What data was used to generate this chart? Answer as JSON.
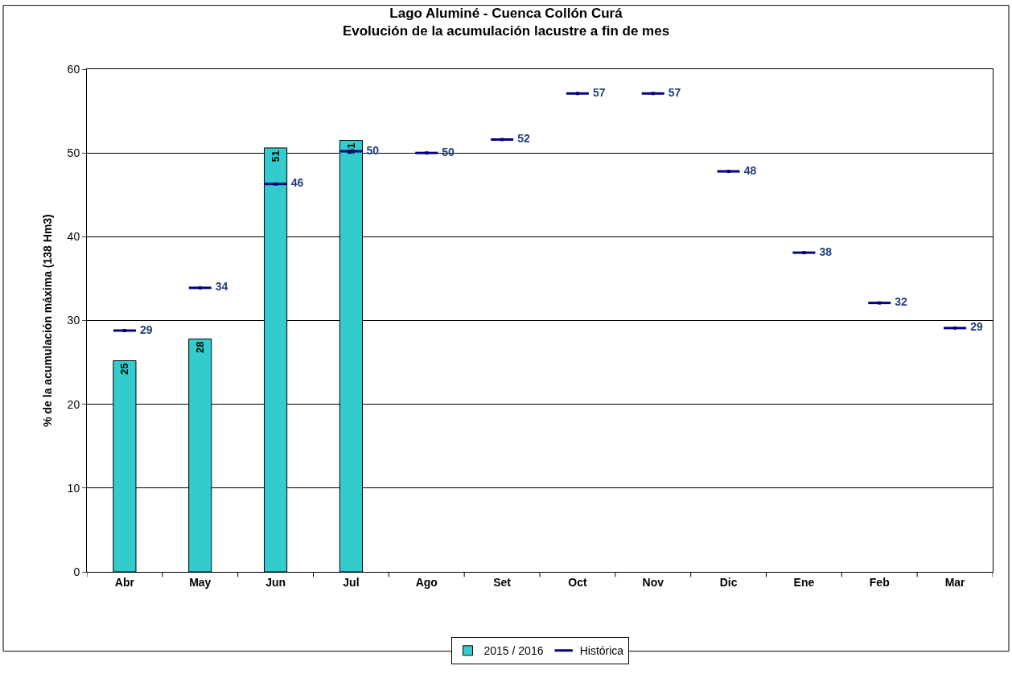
{
  "chart_data": {
    "type": "bar",
    "title": "Lago Aluminé - Cuenca Collón Curá",
    "subtitle": "Evolución de la acumulación lacustre a fin de mes",
    "ylabel": "% de la acumulación máxima (138 Hm3)",
    "categories": [
      "Abr",
      "May",
      "Jun",
      "Jul",
      "Ago",
      "Set",
      "Oct",
      "Nov",
      "Dic",
      "Ene",
      "Feb",
      "Mar"
    ],
    "series": [
      {
        "name": "2015 / 2016",
        "type": "bar",
        "color": "#33cccc",
        "values": [
          25.2,
          27.8,
          50.6,
          51.5,
          null,
          null,
          null,
          null,
          null,
          null,
          null,
          null
        ],
        "value_labels": [
          "25",
          "28",
          "51",
          "51",
          null,
          null,
          null,
          null,
          null,
          null,
          null,
          null
        ]
      },
      {
        "name": "Histórica",
        "type": "scatter",
        "color": "#000080",
        "values": [
          28.8,
          33.9,
          46.3,
          50.2,
          50.0,
          51.6,
          57.1,
          57.1,
          47.8,
          38.1,
          32.1,
          29.1
        ],
        "value_labels": [
          "29",
          "34",
          "46",
          "50",
          "50",
          "52",
          "57",
          "57",
          "48",
          "38",
          "32",
          "29"
        ]
      }
    ],
    "ylim": [
      0,
      60
    ],
    "yticks": [
      0,
      10,
      20,
      30,
      40,
      50,
      60
    ],
    "grid": "y",
    "legend": "bottom"
  }
}
